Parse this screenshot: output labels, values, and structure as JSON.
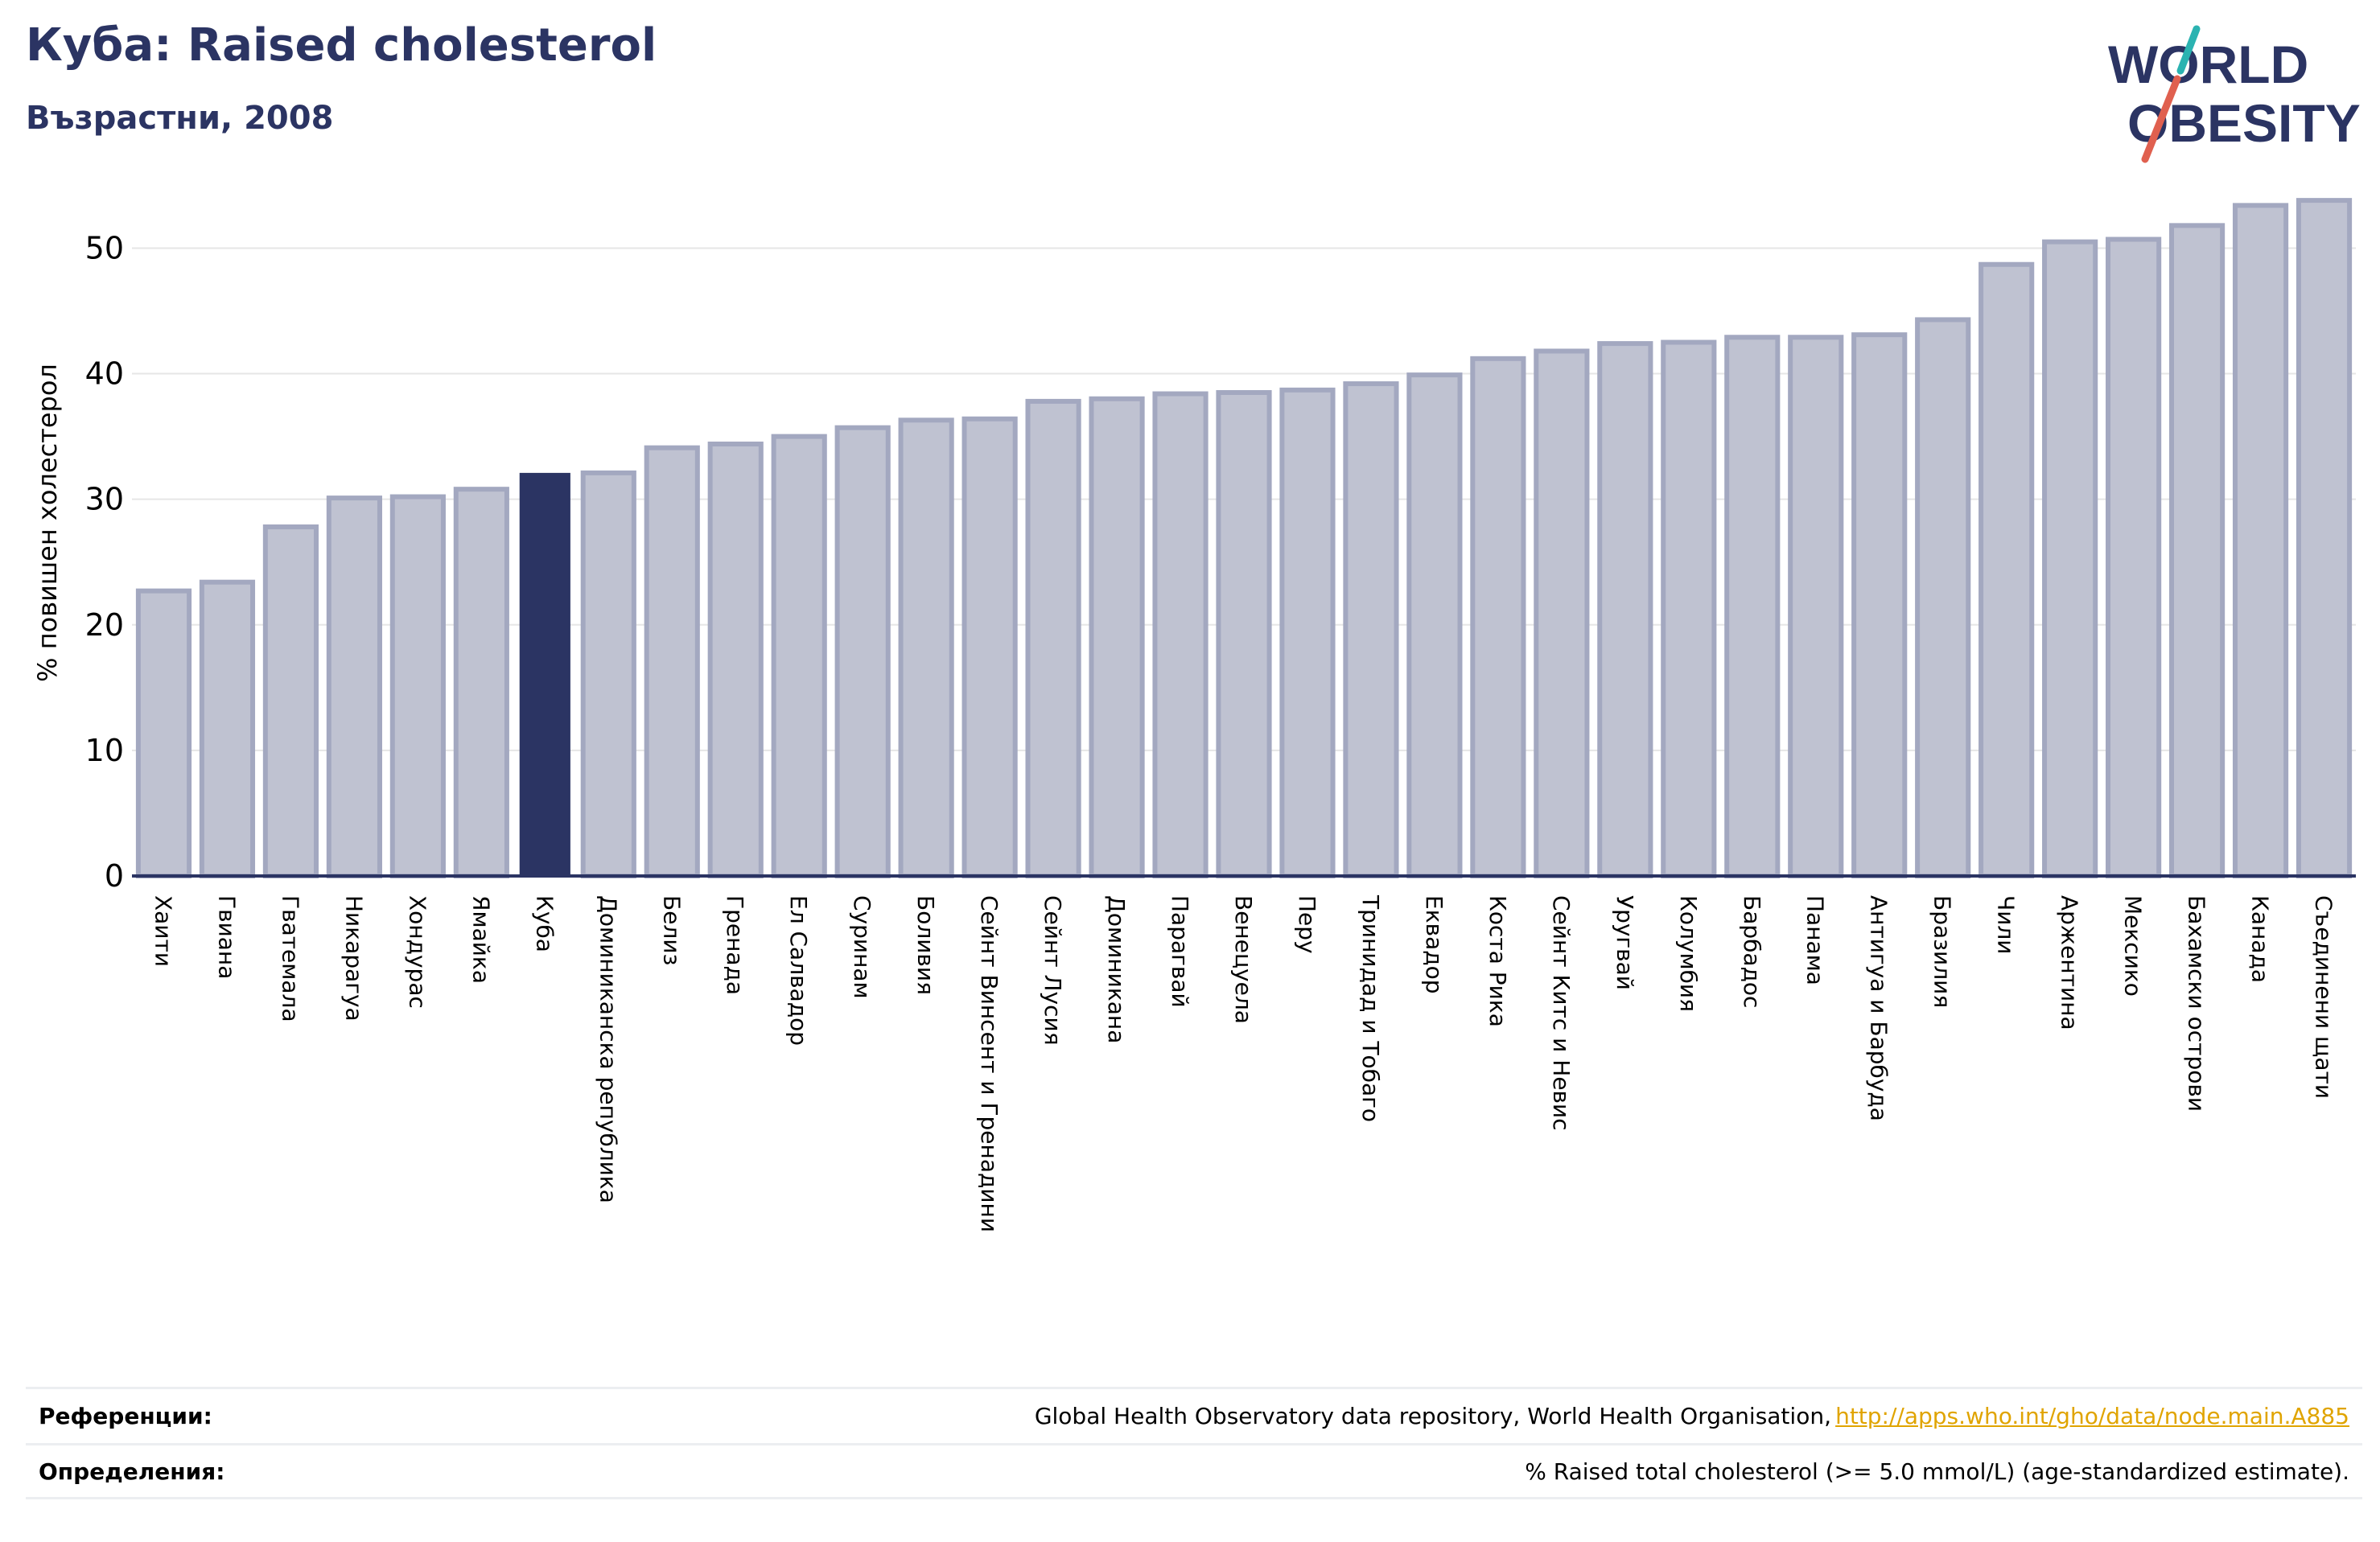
{
  "header": {
    "title": "Куба: Raised cholesterol",
    "subtitle": "Възрастни, 2008"
  },
  "logo": {
    "line1": "WORLD",
    "line2": "OBESITY",
    "colors": {
      "text": "#2b3463",
      "slash_teal": "#2bb3b1",
      "slash_red": "#e0604f"
    }
  },
  "colors": {
    "bar": "#bfc2d1",
    "bar_border": "#a3a8c0",
    "highlight": "#2b3463",
    "grid": "#e6e6e6",
    "axis": "#2b3463"
  },
  "chart_data": {
    "type": "bar",
    "title": "Куба: Raised cholesterol",
    "subtitle": "Възрастни, 2008",
    "ylabel": "% повишен холестерол",
    "ylim": [
      0,
      54
    ],
    "yticks": [
      0,
      10,
      20,
      30,
      40,
      50
    ],
    "highlight": "Куба",
    "grid": true,
    "categories": [
      "Хаити",
      "Гвиана",
      "Гватемала",
      "Никарагуа",
      "Хондурас",
      "Ямайка",
      "Куба",
      "Доминиканска република",
      "Белиз",
      "Гренада",
      "Ел Салвадор",
      "Суринам",
      "Боливия",
      "Сейнт Винсент и Гренадини",
      "Сейнт Лусия",
      "Доминикана",
      "Парагвай",
      "Венецуела",
      "Перу",
      "Тринидад и Тобаго",
      "Еквадор",
      "Коста Рика",
      "Сейнт Китс и Невис",
      "Уругвай",
      "Колумбия",
      "Барбадос",
      "Панама",
      "Антигуа и Барбуда",
      "Бразилия",
      "Чили",
      "Аржентина",
      "Мексико",
      "Бахамски острови",
      "Канада",
      "Съединени щати"
    ],
    "values": [
      22.7,
      23.4,
      27.8,
      30.1,
      30.2,
      30.8,
      32.1,
      32.1,
      34.1,
      34.4,
      35.0,
      35.7,
      36.3,
      36.4,
      37.8,
      38.0,
      38.4,
      38.5,
      38.7,
      39.2,
      39.9,
      41.2,
      41.8,
      42.4,
      42.5,
      42.9,
      42.9,
      43.1,
      44.3,
      48.7,
      50.5,
      50.7,
      51.8,
      53.4,
      53.8
    ]
  },
  "footer": {
    "references_label": "Референции:",
    "references_text": "Global Health Observatory data repository, World Health Organisation,",
    "references_link": "http://apps.who.int/gho/data/node.main.A885",
    "definitions_label": "Определения:",
    "definitions_text": "% Raised total cholesterol (>= 5.0 mmol/L) (age-standardized estimate)."
  }
}
